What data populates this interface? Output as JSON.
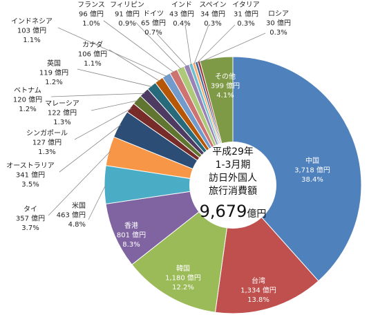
{
  "chart_data": {
    "type": "pie",
    "center_label": {
      "lines": [
        "平成29年",
        "1-3月期",
        "訪日外国人",
        "旅行消費額"
      ],
      "total": "9,679",
      "unit": "億円"
    },
    "slices": [
      {
        "name": "中国",
        "amount": 3718,
        "value": "3,718 億円",
        "share": "38.4%",
        "color": "#4F81BD"
      },
      {
        "name": "台湾",
        "amount": 1334,
        "value": "1,334 億円",
        "share": "13.8%",
        "color": "#C0504D"
      },
      {
        "name": "韓国",
        "amount": 1180,
        "value": "1,180 億円",
        "share": "12.2%",
        "color": "#9BBB59"
      },
      {
        "name": "香港",
        "amount": 801,
        "value": "801 億円",
        "share": "8.3%",
        "color": "#8064A2"
      },
      {
        "name": "米国",
        "amount": 463,
        "value": "463 億円",
        "share": "4.8%",
        "color": "#4BACC6"
      },
      {
        "name": "タイ",
        "amount": 357,
        "value": "357 億円",
        "share": "3.7%",
        "color": "#F79646"
      },
      {
        "name": "オーストラリア",
        "amount": 341,
        "value": "341 億円",
        "share": "3.5%",
        "color": "#2C4D75"
      },
      {
        "name": "シンガポール",
        "amount": 127,
        "value": "127 億円",
        "share": "1.3%",
        "color": "#772C2A"
      },
      {
        "name": "マレーシア",
        "amount": 122,
        "value": "122 億円",
        "share": "1.3%",
        "color": "#5F7530"
      },
      {
        "name": "ベトナム",
        "amount": 120,
        "value": "120 億円",
        "share": "1.2%",
        "color": "#4D3B62"
      },
      {
        "name": "英国",
        "amount": 119,
        "value": "119 億円",
        "share": "1.2%",
        "color": "#276A7C"
      },
      {
        "name": "カナダ",
        "amount": 106,
        "value": "106 億円",
        "share": "1.1%",
        "color": "#B65708"
      },
      {
        "name": "インドネシア",
        "amount": 103,
        "value": "103 億円",
        "share": "1.1%",
        "color": "#729ACA"
      },
      {
        "name": "フランス",
        "amount": 96,
        "value": "96 億円",
        "share": "1.0%",
        "color": "#CD7371"
      },
      {
        "name": "フィリピン",
        "amount": 91,
        "value": "91 億円",
        "share": "0.9%",
        "color": "#AFC97A"
      },
      {
        "name": "ドイツ",
        "amount": 65,
        "value": "65 億円",
        "share": "0.7%",
        "color": "#9983B5"
      },
      {
        "name": "インド",
        "amount": 43,
        "value": "43 億円",
        "share": "0.4%",
        "color": "#6FBDD1"
      },
      {
        "name": "スペイン",
        "amount": 34,
        "value": "34 億円",
        "share": "0.3%",
        "color": "#F9AB6B"
      },
      {
        "name": "イタリア",
        "amount": 31,
        "value": "31 億円",
        "share": "0.3%",
        "color": "#3A679C"
      },
      {
        "name": "ロシア",
        "amount": 30,
        "value": "30 億円",
        "share": "0.3%",
        "color": "#9E3B38"
      },
      {
        "name": "その他",
        "amount": 399,
        "value": "399 億円",
        "share": "4.1%",
        "color": "#7E9A47"
      }
    ]
  }
}
